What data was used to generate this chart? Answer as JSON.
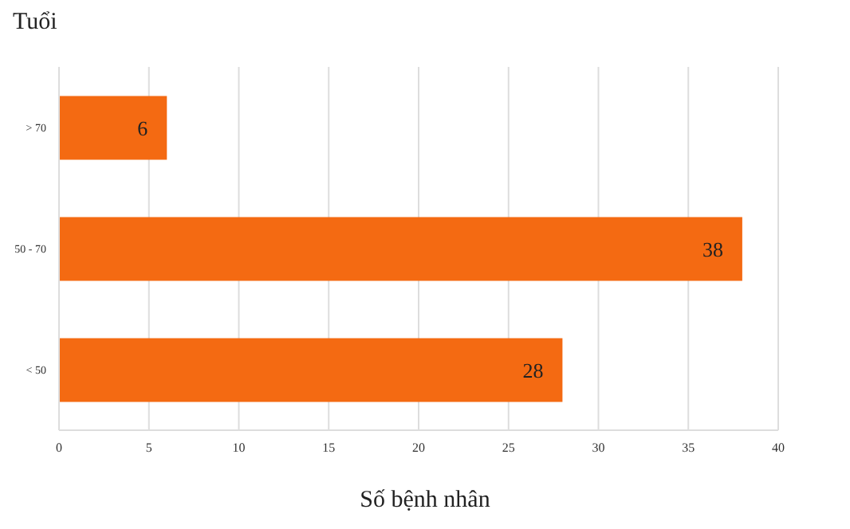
{
  "chart_data": {
    "type": "bar",
    "orientation": "horizontal",
    "xlabel": "Số bệnh nhân",
    "ylabel": "Tuổi",
    "categories": [
      "> 70",
      "50 - 70",
      "< 50"
    ],
    "values": [
      6,
      38,
      28
    ],
    "color": "#f46a12",
    "xlim": [
      0,
      40
    ],
    "xticks": [
      0,
      5,
      10,
      15,
      20,
      25,
      30,
      35,
      40
    ],
    "grid": "x",
    "data_labels": true
  }
}
